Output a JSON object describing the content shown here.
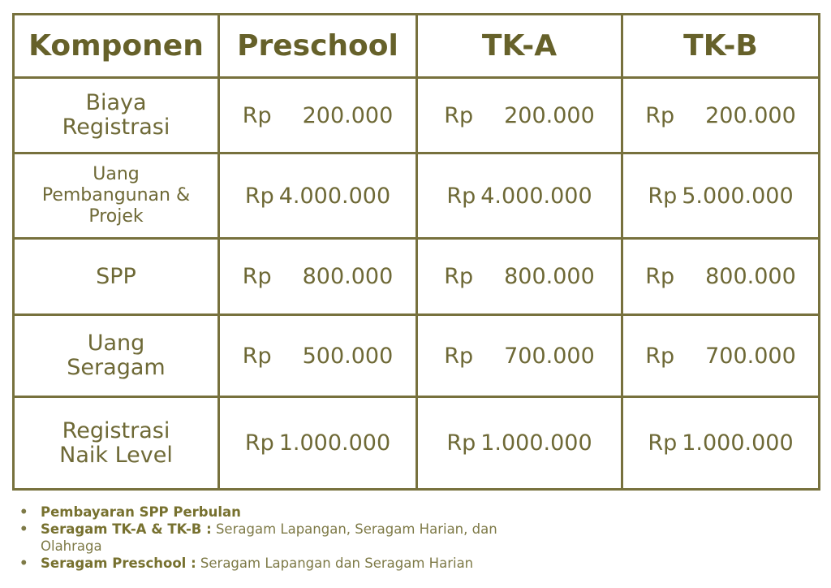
{
  "table": {
    "headers": [
      "Komponen",
      "Preschool",
      "TK-A",
      "TK-B"
    ],
    "rows": [
      {
        "component": "Biaya Registrasi",
        "values": [
          [
            "Rp",
            "200.000"
          ],
          [
            "Rp",
            "200.000"
          ],
          [
            "Rp",
            "200.000"
          ]
        ]
      },
      {
        "component": "Uang Pembangunan & Projek",
        "values": [
          [
            "Rp",
            "4.000.000"
          ],
          [
            "Rp",
            "4.000.000"
          ],
          [
            "Rp",
            "5.000.000"
          ]
        ]
      },
      {
        "component": "SPP",
        "values": [
          [
            "Rp",
            "800.000"
          ],
          [
            "Rp",
            "800.000"
          ],
          [
            "Rp",
            "800.000"
          ]
        ]
      },
      {
        "component": "Uang Seragam",
        "values": [
          [
            "Rp",
            "500.000"
          ],
          [
            "Rp",
            "700.000"
          ],
          [
            "Rp",
            "700.000"
          ]
        ]
      },
      {
        "component": "Registrasi Naik Level",
        "values": [
          [
            "Rp",
            "1.000.000"
          ],
          [
            "Rp",
            "1.000.000"
          ],
          [
            "Rp",
            "1.000.000"
          ]
        ]
      }
    ]
  },
  "notes": [
    {
      "bold": "Pembayaran SPP Perbulan",
      "text": ""
    },
    {
      "bold": "Seragam TK-A & TK-B :",
      "text": " Seragam Lapangan, Seragam Harian, dan Olahraga"
    },
    {
      "bold": "Seragam Preschool :",
      "text": " Seragam Lapangan dan Seragam Harian"
    }
  ],
  "colors": {
    "border": "#77713d",
    "header_text": "#66612a",
    "body_text": "#6e6936"
  }
}
